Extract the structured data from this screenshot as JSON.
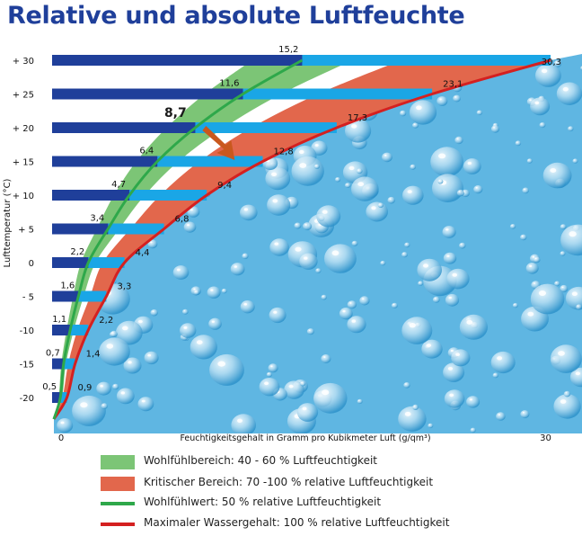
{
  "title": "Relative und absolute Luftfeuchte",
  "chart_data": {
    "type": "bar",
    "categories": [
      "+ 30",
      "+ 25",
      "+ 20",
      "+ 15",
      "+ 10",
      "+ 5",
      "0",
      "- 5",
      "-10",
      "-15",
      "-20"
    ],
    "temperatures": [
      30,
      25,
      20,
      15,
      10,
      5,
      0,
      -5,
      -10,
      -15,
      -20
    ],
    "series": [
      {
        "name": "Wohlfühlwert: 50 % relative Luftfeuchtigkeit",
        "values": [
          15.2,
          11.6,
          8.7,
          6.4,
          4.7,
          3.4,
          2.2,
          1.6,
          1.1,
          0.7,
          0.5
        ],
        "labels": [
          "15,2",
          "11,6",
          "8,7",
          "6,4",
          "4,7",
          "3,4",
          "2,2",
          "1,6",
          "1,1",
          "0,7",
          "0,5"
        ]
      },
      {
        "name": "Maximaler Wassergehalt: 100 % relative Luftfeuchtigkeit",
        "values": [
          30.3,
          23.1,
          17.3,
          12.8,
          9.4,
          6.8,
          4.4,
          3.3,
          2.2,
          1.4,
          0.9
        ],
        "labels": [
          "30,3",
          "23,1",
          "17,3",
          "12,8",
          "9,4",
          "6,8",
          "4,4",
          "3,3",
          "2,2",
          "1,4",
          "0,9"
        ]
      }
    ],
    "xlabel": "Feuchtigkeitsgehalt in Gramm pro Kubikmeter Luft (g/qm³)",
    "ylabel": "Lufttemperatur (°C)",
    "x_ticks": [
      "0",
      "30"
    ],
    "xlim": [
      0,
      30.3
    ],
    "highlight_label": "8,7",
    "colors": {
      "title": "#1f3f9a",
      "dark_bar": "#1f3f9a",
      "light_bar": "#1aa6e6",
      "comfort_band": "#7cc576",
      "critical_band": "#e2674c",
      "comfort_line": "#2ea84a",
      "max_line": "#d42020",
      "arrow": "#c9581e",
      "water": "#5fb6e2"
    }
  },
  "legend": [
    {
      "kind": "band",
      "color": "#7cc576",
      "label": "Wohlfühlbereich: 40 - 60 % Luftfeuchtigkeit"
    },
    {
      "kind": "band",
      "color": "#e2674c",
      "label": "Kritischer Bereich: 70 -100 % relative Luftfeuchtigkeit"
    },
    {
      "kind": "line",
      "color": "#2ea84a",
      "label": "Wohlfühlwert: 50 % relative Luftfeuchtigkeit"
    },
    {
      "kind": "line",
      "color": "#d42020",
      "label": "Maximaler Wassergehalt: 100 % relative Luftfeuchtigkeit"
    }
  ]
}
